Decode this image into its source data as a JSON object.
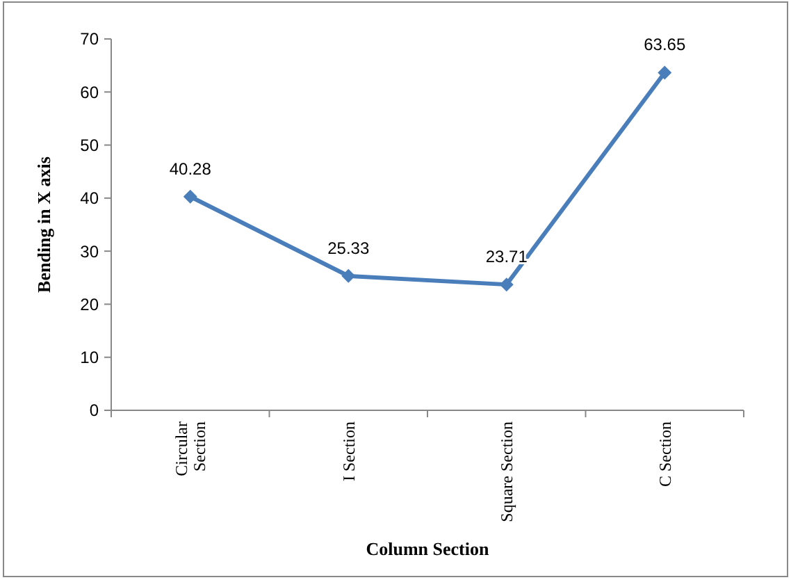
{
  "chart_data": {
    "type": "line",
    "xlabel": "Column Section",
    "ylabel": "Bending in X axis",
    "categories": [
      "Circular Section",
      "I Section",
      "Square Section",
      "C Section"
    ],
    "series": [
      {
        "color": "#4a7ebb",
        "values": [
          40.28,
          25.33,
          23.71,
          63.65
        ]
      }
    ],
    "ylim": [
      0,
      70
    ],
    "yticks": [
      0,
      10,
      20,
      30,
      40,
      50,
      60,
      70
    ],
    "marker": "diamond",
    "line_style": "solid",
    "data_labels": true
  }
}
